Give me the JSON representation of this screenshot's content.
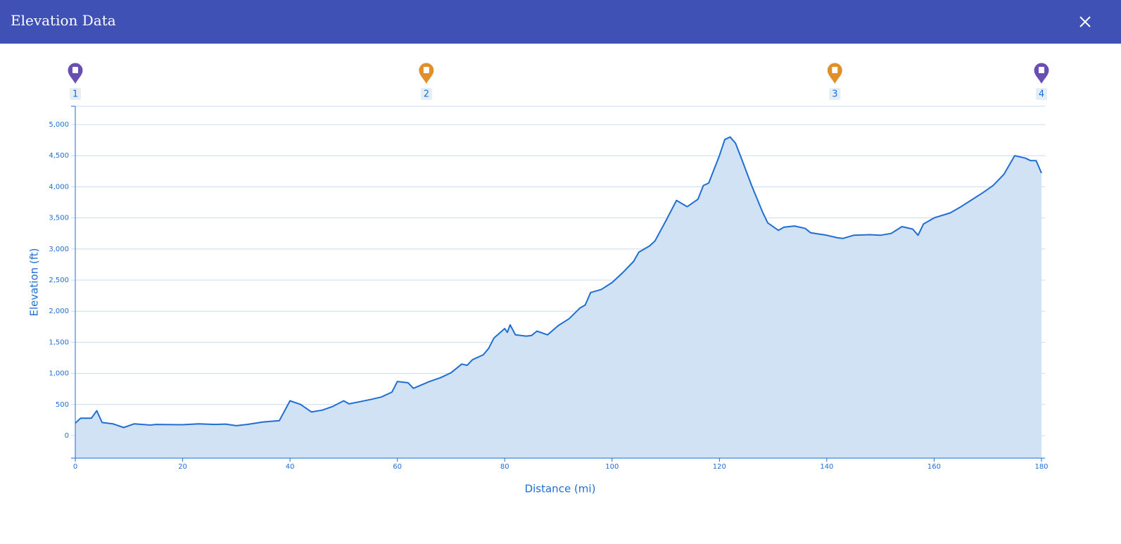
{
  "header": {
    "title": "Elevation Data"
  },
  "chart_data": {
    "type": "area",
    "xlabel": "Distance (mi)",
    "ylabel": "Elevation (ft)",
    "line_color": "#1f6ed4",
    "fill_color": "#d1e2f5",
    "grid": true,
    "xlim": [
      0,
      180
    ],
    "xticks": [
      0,
      20,
      40,
      60,
      80,
      100,
      120,
      140,
      160,
      180
    ],
    "ylim": [
      -362,
      5294
    ],
    "yticks": [
      0,
      500,
      {
        "value": 1000,
        "label": "1,000"
      },
      {
        "value": 1500,
        "label": "1,500"
      },
      {
        "value": 2000,
        "label": "2,000"
      },
      {
        "value": 2500,
        "label": "2,500"
      },
      {
        "value": 3000,
        "label": "3,000"
      },
      {
        "value": 3500,
        "label": "3,500"
      },
      {
        "value": 4000,
        "label": "4,000"
      },
      {
        "value": 4500,
        "label": "4,500"
      },
      {
        "value": 5000,
        "label": "5,000"
      }
    ],
    "markers": [
      {
        "label": "1",
        "x": 0,
        "color": "#6a4fb3"
      },
      {
        "label": "2",
        "x": 65.4,
        "color": "#e0902a"
      },
      {
        "label": "3",
        "x": 141.5,
        "color": "#e0902a"
      },
      {
        "label": "4",
        "x": 180,
        "color": "#6a4fb3"
      }
    ],
    "x": [
      0,
      1,
      3,
      4,
      5,
      7,
      9,
      11,
      14,
      15,
      20,
      23,
      26,
      28,
      30,
      32,
      35,
      38,
      40,
      42,
      44,
      46,
      48,
      50,
      51,
      55,
      57,
      59,
      60,
      62,
      63,
      66,
      68,
      70,
      72,
      73,
      74,
      76,
      77,
      78,
      80,
      80.5,
      81,
      82,
      84,
      85,
      86,
      88,
      90,
      92,
      94,
      95,
      96,
      98,
      100,
      102,
      104,
      105,
      107,
      108,
      110,
      112,
      114,
      116,
      117,
      118,
      120,
      121,
      122,
      123,
      124,
      126,
      128,
      129,
      131,
      132,
      134,
      136,
      137,
      140,
      142,
      143,
      145,
      148,
      150,
      152,
      154,
      156,
      157,
      158,
      160,
      163,
      165,
      167,
      169,
      171,
      173,
      175,
      177,
      178,
      179,
      180
    ],
    "values": [
      200,
      280,
      280,
      400,
      210,
      190,
      130,
      190,
      170,
      180,
      175,
      190,
      180,
      185,
      160,
      180,
      220,
      240,
      560,
      500,
      380,
      410,
      470,
      560,
      510,
      580,
      620,
      700,
      870,
      850,
      760,
      870,
      930,
      1010,
      1150,
      1130,
      1220,
      1300,
      1400,
      1570,
      1720,
      1660,
      1780,
      1620,
      1600,
      1610,
      1680,
      1620,
      1770,
      1880,
      2050,
      2100,
      2300,
      2350,
      2460,
      2620,
      2800,
      2950,
      3050,
      3130,
      3450,
      3780,
      3680,
      3800,
      4020,
      4060,
      4500,
      4760,
      4800,
      4700,
      4480,
      4020,
      3600,
      3420,
      3300,
      3350,
      3370,
      3330,
      3260,
      3220,
      3180,
      3170,
      3220,
      3230,
      3220,
      3250,
      3360,
      3320,
      3220,
      3400,
      3500,
      3580,
      3680,
      3790,
      3900,
      4020,
      4200,
      4500,
      4460,
      4420,
      4420,
      4220
    ]
  }
}
